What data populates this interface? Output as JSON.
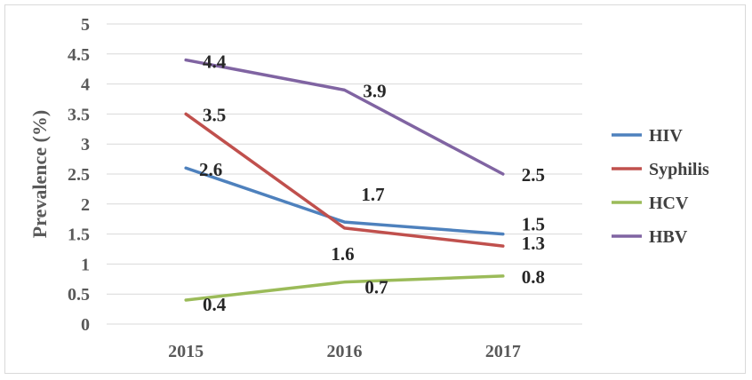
{
  "chart_data": {
    "type": "line",
    "title": "",
    "xlabel": "",
    "ylabel": "Prevalence (%)",
    "categories": [
      "2015",
      "2016",
      "2017"
    ],
    "ylim": [
      0,
      5
    ],
    "yticks": [
      "0",
      "0.5",
      "1",
      "1.5",
      "2",
      "2.5",
      "3",
      "3.5",
      "4",
      "4.5",
      "5"
    ],
    "grid": true,
    "legend_position": "right",
    "series": [
      {
        "name": "HIV",
        "color": "#4e81bd",
        "values": [
          2.6,
          1.7,
          1.5
        ]
      },
      {
        "name": "Syphilis",
        "color": "#c0504d",
        "values": [
          3.5,
          1.6,
          1.3
        ]
      },
      {
        "name": "HCV",
        "color": "#9bbb59",
        "values": [
          0.4,
          0.7,
          0.8
        ]
      },
      {
        "name": "HBV",
        "color": "#8064a2",
        "values": [
          4.4,
          3.9,
          2.5
        ]
      }
    ]
  }
}
